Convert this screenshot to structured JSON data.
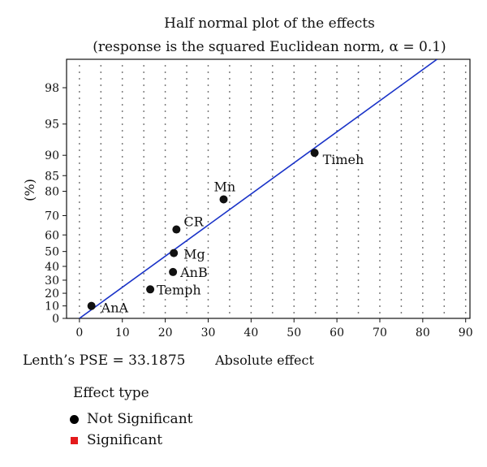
{
  "chart_data": {
    "type": "scatter",
    "title": "Half normal plot of the effects",
    "subtitle": "(response is the squared Euclidean norm, α = 0.1)",
    "xlabel": "Absolute effect",
    "ylabel": "(%)",
    "xlim": [
      -3,
      91
    ],
    "xticks": [
      0,
      10,
      20,
      30,
      40,
      50,
      60,
      70,
      80,
      90
    ],
    "yticks": [
      0,
      10,
      20,
      30,
      40,
      50,
      60,
      70,
      80,
      85,
      90,
      95,
      98
    ],
    "y_scale": "half-normal probability",
    "grid": true,
    "points": [
      {
        "label": "AnA",
        "x": 2.8,
        "y": 10
      },
      {
        "label": "Temph",
        "x": 16.5,
        "y": 23
      },
      {
        "label": "AnB",
        "x": 21.8,
        "y": 36
      },
      {
        "label": "Mg",
        "x": 22.0,
        "y": 49
      },
      {
        "label": "CR",
        "x": 22.6,
        "y": 63
      },
      {
        "label": "Mn",
        "x": 33.6,
        "y": 77
      },
      {
        "label": "Timeh",
        "x": 54.8,
        "y": 90.5
      }
    ],
    "fit_line": {
      "x": [
        0,
        86
      ],
      "y": [
        0,
        99.3
      ],
      "color": "#1a33c8"
    },
    "marker_color": "#111111"
  },
  "lenth_pse": "Lenth’s PSE = 33.1875",
  "legend": {
    "title": "Effect type",
    "items": [
      {
        "label": "Not Significant",
        "color": "#000000",
        "shape": "dot"
      },
      {
        "label": "Significant",
        "color": "#e41a1c",
        "shape": "square"
      }
    ]
  }
}
